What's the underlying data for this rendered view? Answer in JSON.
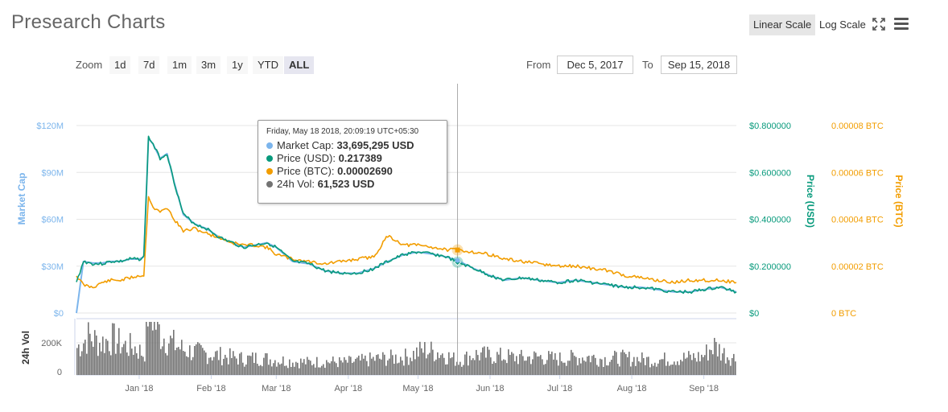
{
  "header": {
    "title": "Presearch Charts",
    "linear_scale_label": "Linear Scale",
    "log_scale_label": "Log Scale",
    "expand_icon": "expand-icon",
    "menu_icon": "hamburger-menu-icon"
  },
  "zoom": {
    "label": "Zoom",
    "buttons": [
      "1d",
      "7d",
      "1m",
      "3m",
      "1y",
      "YTD",
      "ALL"
    ],
    "active": "ALL"
  },
  "range": {
    "from_label": "From",
    "from_value": "Dec 5, 2017",
    "to_label": "To",
    "to_value": "Sep 15, 2018"
  },
  "colors": {
    "market_cap": "#7cb5ec",
    "price_usd": "#089a7c",
    "price_btc": "#f29d00",
    "volume": "#737373",
    "axis_mc": "#7cb5ec",
    "axis_usd": "#089a7c",
    "axis_btc": "#f29d00"
  },
  "tooltip": {
    "date": "Friday, May 18 2018, 20:09:19 UTC+05:30",
    "rows": [
      {
        "label": "Market Cap:",
        "value": "33,695,295 USD",
        "color": "#7cb5ec"
      },
      {
        "label": "Price (USD):",
        "value": "0.217389",
        "color": "#089a7c"
      },
      {
        "label": "Price (BTC):",
        "value": "0.00002690",
        "color": "#f29d00"
      },
      {
        "label": "24h Vol:",
        "value": "61,523 USD",
        "color": "#737373"
      }
    ]
  },
  "chart_data": {
    "type": "line",
    "x_start": "2017-12-05",
    "x_end": "2018-09-15",
    "x_ticks": [
      {
        "label": "Jan '18",
        "date": "2018-01-01"
      },
      {
        "label": "Feb '18",
        "date": "2018-02-01"
      },
      {
        "label": "Mar '18",
        "date": "2018-03-01"
      },
      {
        "label": "Apr '18",
        "date": "2018-04-01"
      },
      {
        "label": "May '18",
        "date": "2018-05-01"
      },
      {
        "label": "Jun '18",
        "date": "2018-06-01"
      },
      {
        "label": "Jul '18",
        "date": "2018-07-01"
      },
      {
        "label": "Aug '18",
        "date": "2018-08-01"
      },
      {
        "label": "Sep '18",
        "date": "2018-09-01"
      }
    ],
    "y_axes": [
      {
        "id": "mc",
        "title": "Market Cap",
        "ticks": [
          "$0",
          "$30M",
          "$60M",
          "$90M",
          "$120M"
        ],
        "range": [
          0,
          120000000
        ],
        "side": "left"
      },
      {
        "id": "usd",
        "title": "Price (USD)",
        "ticks": [
          "$0",
          "$0.200000",
          "$0.400000",
          "$0.600000",
          "$0.800000"
        ],
        "range": [
          0,
          0.8
        ],
        "side": "right"
      },
      {
        "id": "btc",
        "title": "Price (BTC)",
        "ticks": [
          "0 BTC",
          "0.00002 BTC",
          "0.00004 BTC",
          "0.00006 BTC",
          "0.00008 BTC"
        ],
        "range": [
          0,
          8e-05
        ],
        "side": "right"
      },
      {
        "id": "vol",
        "title": "24h Vol",
        "ticks": [
          "0",
          "200K"
        ],
        "range": [
          0,
          400000
        ],
        "side": "left"
      }
    ],
    "series": [
      {
        "name": "Price (USD)",
        "axis": "usd",
        "x": [
          "2017-12-05",
          "2017-12-08",
          "2017-12-12",
          "2017-12-16",
          "2017-12-20",
          "2017-12-24",
          "2017-12-28",
          "2018-01-01",
          "2018-01-03",
          "2018-01-05",
          "2018-01-07",
          "2018-01-10",
          "2018-01-13",
          "2018-01-16",
          "2018-01-20",
          "2018-01-25",
          "2018-01-30",
          "2018-02-05",
          "2018-02-10",
          "2018-02-15",
          "2018-02-20",
          "2018-02-25",
          "2018-03-01",
          "2018-03-08",
          "2018-03-15",
          "2018-03-22",
          "2018-03-29",
          "2018-04-05",
          "2018-04-12",
          "2018-04-18",
          "2018-04-25",
          "2018-05-01",
          "2018-05-08",
          "2018-05-13",
          "2018-05-18",
          "2018-05-25",
          "2018-06-01",
          "2018-06-07",
          "2018-06-15",
          "2018-06-22",
          "2018-06-30",
          "2018-07-08",
          "2018-07-15",
          "2018-07-22",
          "2018-07-29",
          "2018-08-05",
          "2018-08-12",
          "2018-08-19",
          "2018-08-26",
          "2018-09-01",
          "2018-09-08",
          "2018-09-15"
        ],
        "y": [
          0.13,
          0.22,
          0.21,
          0.21,
          0.22,
          0.22,
          0.23,
          0.23,
          0.24,
          0.75,
          0.72,
          0.66,
          0.68,
          0.56,
          0.42,
          0.38,
          0.36,
          0.32,
          0.3,
          0.28,
          0.29,
          0.3,
          0.28,
          0.22,
          0.21,
          0.18,
          0.17,
          0.17,
          0.19,
          0.22,
          0.25,
          0.26,
          0.25,
          0.24,
          0.217,
          0.19,
          0.16,
          0.14,
          0.15,
          0.14,
          0.13,
          0.14,
          0.13,
          0.12,
          0.11,
          0.11,
          0.1,
          0.09,
          0.09,
          0.1,
          0.11,
          0.09
        ]
      },
      {
        "name": "Price (BTC)",
        "axis": "btc",
        "x": [
          "2017-12-05",
          "2017-12-08",
          "2017-12-12",
          "2017-12-16",
          "2017-12-20",
          "2017-12-24",
          "2017-12-28",
          "2018-01-01",
          "2018-01-03",
          "2018-01-05",
          "2018-01-07",
          "2018-01-10",
          "2018-01-13",
          "2018-01-16",
          "2018-01-20",
          "2018-01-25",
          "2018-01-30",
          "2018-02-05",
          "2018-02-10",
          "2018-02-15",
          "2018-02-20",
          "2018-02-25",
          "2018-03-01",
          "2018-03-08",
          "2018-03-15",
          "2018-03-22",
          "2018-03-29",
          "2018-04-05",
          "2018-04-12",
          "2018-04-18",
          "2018-04-25",
          "2018-05-01",
          "2018-05-08",
          "2018-05-13",
          "2018-05-18",
          "2018-05-25",
          "2018-06-01",
          "2018-06-07",
          "2018-06-15",
          "2018-06-22",
          "2018-06-30",
          "2018-07-08",
          "2018-07-15",
          "2018-07-22",
          "2018-07-29",
          "2018-08-05",
          "2018-08-12",
          "2018-08-19",
          "2018-08-26",
          "2018-09-01",
          "2018-09-08",
          "2018-09-15"
        ],
        "y": [
          1.6e-05,
          1.2e-05,
          1.1e-05,
          1.3e-05,
          1.4e-05,
          1.4e-05,
          1.5e-05,
          1.6e-05,
          1.6e-05,
          5e-05,
          4.5e-05,
          4.3e-05,
          4.5e-05,
          4e-05,
          3.5e-05,
          3.6e-05,
          3.4e-05,
          3.2e-05,
          3e-05,
          2.9e-05,
          2.9e-05,
          2.8e-05,
          2.5e-05,
          2.3e-05,
          2.2e-05,
          2.1e-05,
          2.2e-05,
          2.3e-05,
          2.4e-05,
          3.3e-05,
          2.9e-05,
          2.9e-05,
          2.8e-05,
          2.7e-05,
          2.69e-05,
          2.6e-05,
          2.5e-05,
          2.3e-05,
          2.2e-05,
          2.1e-05,
          2e-05,
          2e-05,
          1.9e-05,
          1.8e-05,
          1.6e-05,
          1.5e-05,
          1.4e-05,
          1.3e-05,
          1.4e-05,
          1.4e-05,
          1.4e-05,
          1.3e-05
        ]
      },
      {
        "name": "Market Cap",
        "axis": "mc",
        "x": [
          "2017-12-05",
          "2017-12-08",
          "2017-12-12",
          "2017-12-16",
          "2017-12-20",
          "2017-12-24",
          "2017-12-28",
          "2018-01-01",
          "2018-01-03",
          "2018-01-05",
          "2018-01-07",
          "2018-01-10",
          "2018-01-13",
          "2018-01-16",
          "2018-01-20",
          "2018-01-25",
          "2018-01-30",
          "2018-02-05",
          "2018-02-10",
          "2018-02-15",
          "2018-02-20",
          "2018-02-25",
          "2018-03-01",
          "2018-03-08",
          "2018-03-15",
          "2018-03-22",
          "2018-03-29",
          "2018-04-05",
          "2018-04-12",
          "2018-04-18",
          "2018-04-25",
          "2018-05-01",
          "2018-05-08",
          "2018-05-13",
          "2018-05-18",
          "2018-05-25",
          "2018-06-01",
          "2018-06-07",
          "2018-06-15",
          "2018-06-22",
          "2018-06-30",
          "2018-07-08",
          "2018-07-15",
          "2018-07-22",
          "2018-07-29",
          "2018-08-05",
          "2018-08-12",
          "2018-08-19",
          "2018-08-26",
          "2018-09-01",
          "2018-09-08",
          "2018-09-15"
        ],
        "y": [
          0,
          33000000,
          32000000,
          32000000,
          33000000,
          33000000,
          34500000,
          34500000,
          36000000,
          112000000,
          108000000,
          99000000,
          102000000,
          84000000,
          63000000,
          57000000,
          54000000,
          48000000,
          45000000,
          42000000,
          43500000,
          45000000,
          42000000,
          33000000,
          31500000,
          27000000,
          25500000,
          25500000,
          28500000,
          33000000,
          37500000,
          39000000,
          37500000,
          36000000,
          33695295,
          28500000,
          24000000,
          21000000,
          22500000,
          21000000,
          19500000,
          21000000,
          19500000,
          18000000,
          16500000,
          16500000,
          15000000,
          13500000,
          13500000,
          15000000,
          16500000,
          13500000
        ]
      },
      {
        "name": "24h Vol",
        "axis": "vol",
        "x": [
          "2017-12-05",
          "2017-12-10",
          "2017-12-15",
          "2017-12-20",
          "2017-12-25",
          "2017-12-30",
          "2018-01-03",
          "2018-01-05",
          "2018-01-07",
          "2018-01-10",
          "2018-01-15",
          "2018-01-20",
          "2018-01-25",
          "2018-02-01",
          "2018-02-08",
          "2018-02-15",
          "2018-02-22",
          "2018-03-01",
          "2018-03-08",
          "2018-03-15",
          "2018-03-22",
          "2018-03-29",
          "2018-04-05",
          "2018-04-12",
          "2018-04-19",
          "2018-04-26",
          "2018-05-03",
          "2018-05-10",
          "2018-05-18",
          "2018-05-25",
          "2018-06-01",
          "2018-06-08",
          "2018-06-15",
          "2018-06-22",
          "2018-06-29",
          "2018-07-06",
          "2018-07-13",
          "2018-07-20",
          "2018-07-27",
          "2018-08-03",
          "2018-08-10",
          "2018-08-17",
          "2018-08-24",
          "2018-08-31",
          "2018-09-05",
          "2018-09-10",
          "2018-09-15"
        ],
        "y": [
          120000,
          170000,
          140000,
          160000,
          130000,
          120000,
          90000,
          360000,
          240000,
          180000,
          140000,
          110000,
          100000,
          90000,
          80000,
          70000,
          75000,
          65000,
          60000,
          55000,
          60000,
          55000,
          60000,
          70000,
          75000,
          80000,
          110000,
          100000,
          61523,
          90000,
          85000,
          80000,
          75000,
          80000,
          70000,
          75000,
          80000,
          70000,
          75000,
          70000,
          65000,
          70000,
          75000,
          80000,
          130000,
          90000,
          70000
        ]
      }
    ]
  }
}
